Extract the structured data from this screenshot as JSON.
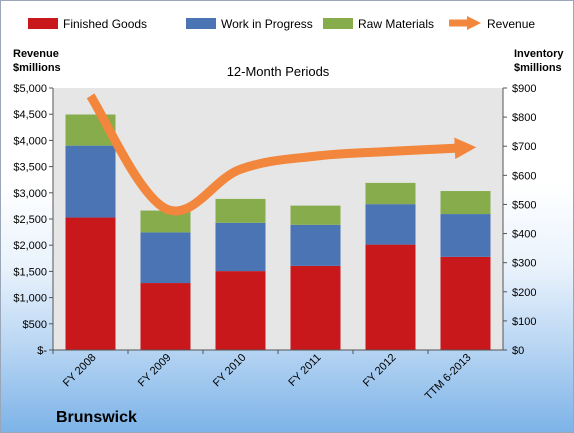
{
  "colors": {
    "finished": "#c8181c",
    "wip": "#4a74b4",
    "raw": "#86ac4c",
    "revenue": "#f2863c",
    "plot_bg": "#e6e6e6"
  },
  "company": "Brunswick",
  "chart_data": {
    "type": "bar",
    "stacked": true,
    "title": "12-Month Periods",
    "categories": [
      "FY 2008",
      "FY 2009",
      "FY 2010",
      "FY 2011",
      "FY 2012",
      "TTM 6-2013"
    ],
    "y_left_label": [
      "Revenue",
      "$millions"
    ],
    "y_right_label": [
      "Inventory",
      "$millions"
    ],
    "y_left_range": [
      0,
      5000
    ],
    "y_left_ticks": [
      0,
      500,
      1000,
      1500,
      2000,
      2500,
      3000,
      3500,
      4000,
      4500,
      5000
    ],
    "y_left_tick_labels": [
      "$-",
      "$500",
      "$1,000",
      "$1,500",
      "$2,000",
      "$2,500",
      "$3,000",
      "$3,500",
      "$4,000",
      "$4,500",
      "$5,000"
    ],
    "y_right_range": [
      0,
      900
    ],
    "y_right_ticks": [
      0,
      100,
      200,
      300,
      400,
      500,
      600,
      700,
      800,
      900
    ],
    "y_right_tick_labels": [
      "$0",
      "$100",
      "$200",
      "$300",
      "$400",
      "$500",
      "$600",
      "$700",
      "$800",
      "$900"
    ],
    "grid": false,
    "legend_position": "top",
    "series": [
      {
        "name": "Finished Goods",
        "kind": "bar",
        "axis": "right",
        "color_key": "finished",
        "values": [
          455,
          230,
          271,
          289,
          362,
          320
        ]
      },
      {
        "name": "Work in Progress",
        "kind": "bar",
        "axis": "right",
        "color_key": "wip",
        "values": [
          247,
          174,
          166,
          141,
          139,
          147
        ]
      },
      {
        "name": "Raw Materials",
        "kind": "bar",
        "axis": "right",
        "color_key": "raw",
        "values": [
          107,
          75,
          82,
          66,
          73,
          79
        ]
      },
      {
        "name": "Revenue",
        "kind": "line",
        "axis": "left",
        "color_key": "revenue",
        "values": [
          4850,
          2700,
          3450,
          3700,
          3790,
          3860
        ]
      }
    ]
  }
}
